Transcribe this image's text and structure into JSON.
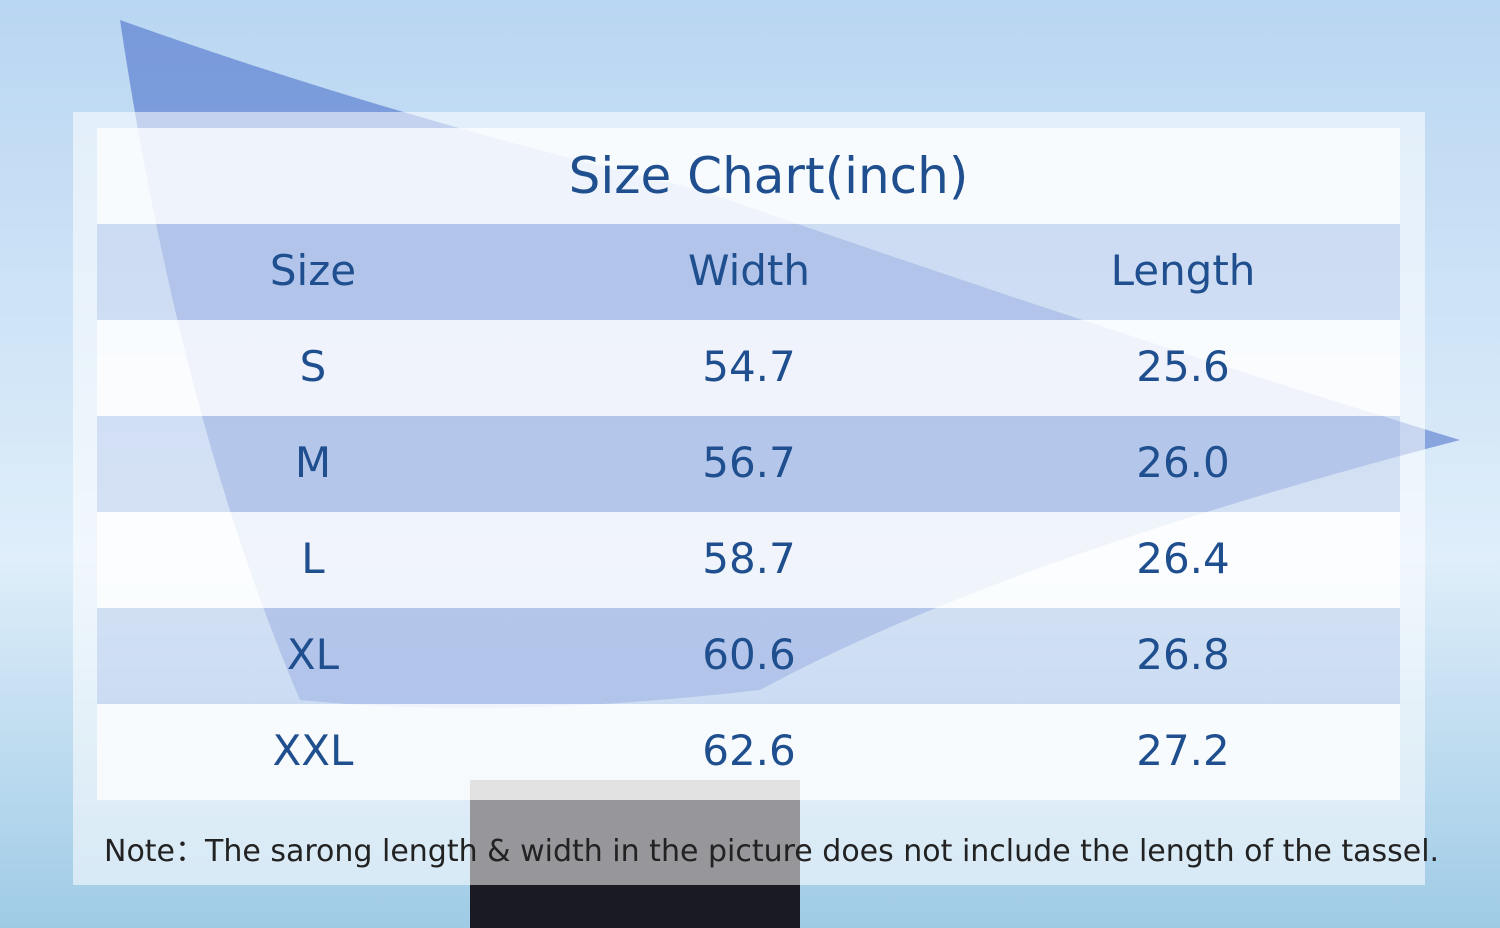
{
  "title": "Size Chart(inch)",
  "table": {
    "header": [
      "Size",
      "Width",
      "Length"
    ],
    "rows": [
      [
        "S",
        "54.7",
        "25.6"
      ],
      [
        "M",
        "56.7",
        "26.0"
      ],
      [
        "L",
        "58.7",
        "26.4"
      ],
      [
        "XL",
        "60.6",
        "26.8"
      ],
      [
        "XXL",
        "62.6",
        "27.2"
      ]
    ]
  },
  "note": "Note：The sarong length & width in the picture does not include the length of the tassel."
}
